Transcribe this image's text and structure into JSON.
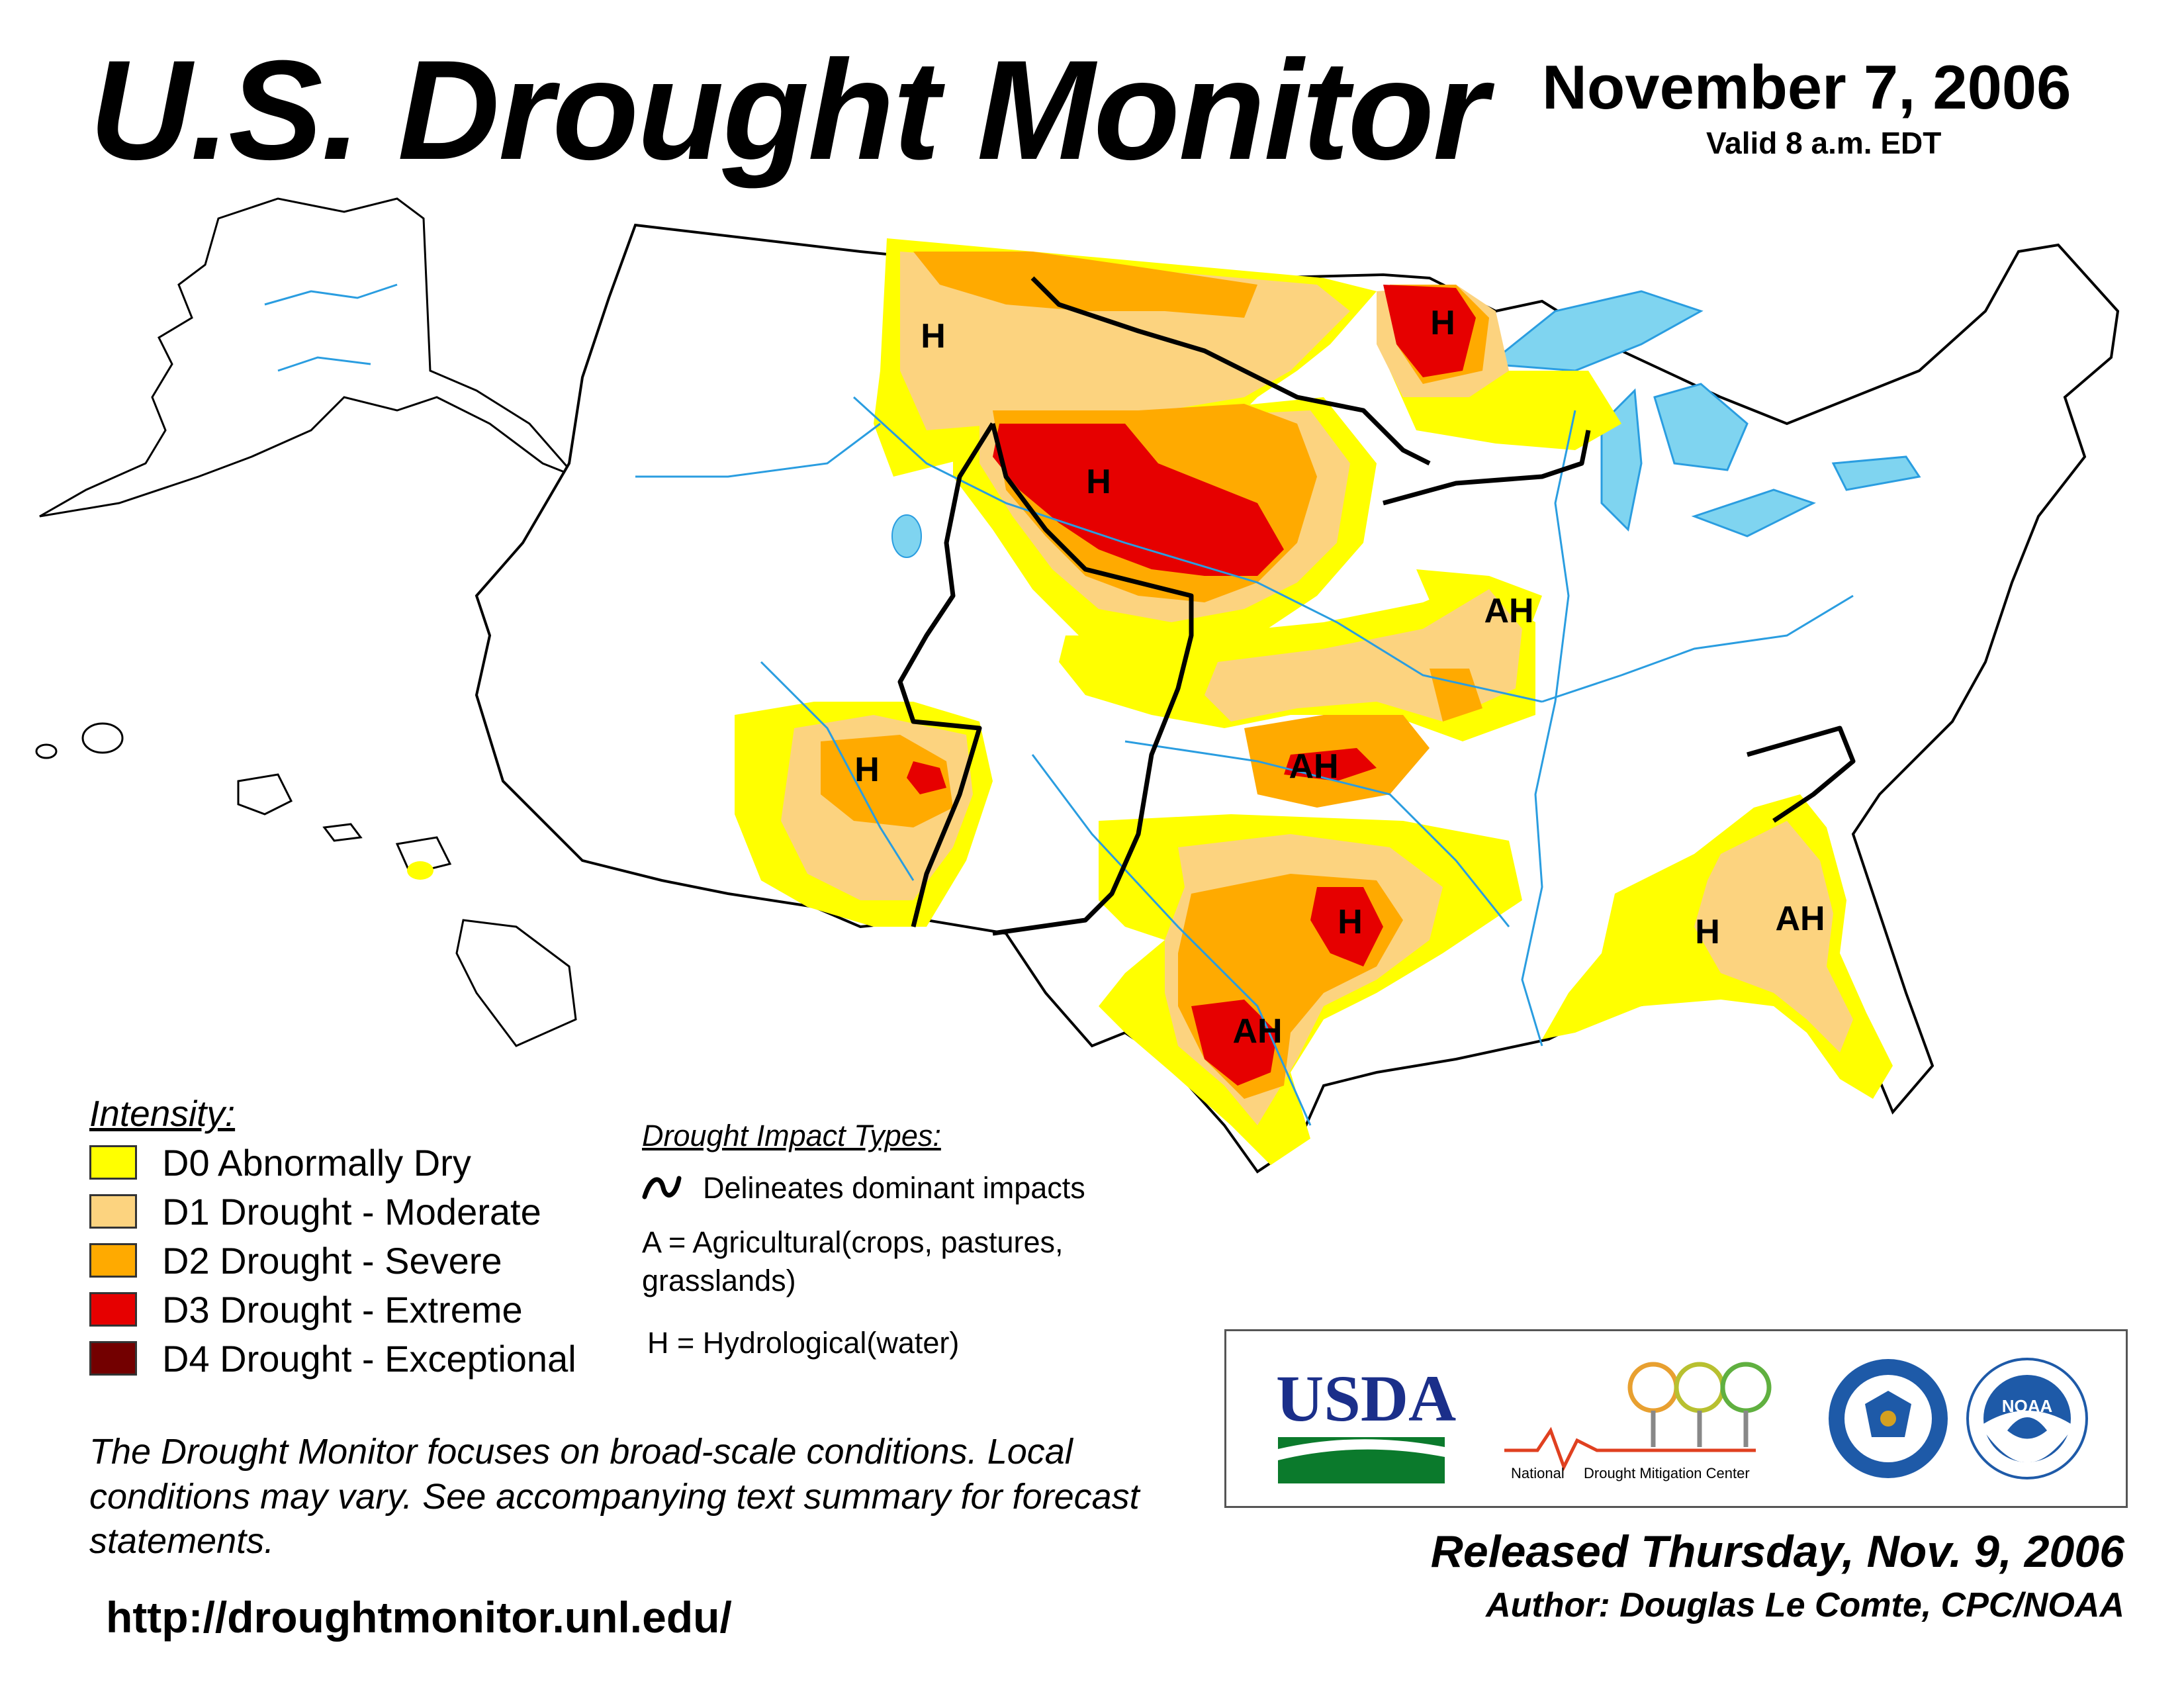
{
  "header": {
    "title": "U.S. Drought Monitor",
    "date": "November 7, 2006",
    "valid": "Valid 8 a.m. EDT"
  },
  "legend": {
    "title": "Intensity:",
    "items": [
      {
        "label": "D0 Abnormally Dry",
        "color": "#ffff00"
      },
      {
        "label": "D1 Drought - Moderate",
        "color": "#fcd37f"
      },
      {
        "label": "D2 Drought - Severe",
        "color": "#ffaa00"
      },
      {
        "label": "D3 Drought - Extreme",
        "color": "#e60000"
      },
      {
        "label": "D4 Drought - Exceptional",
        "color": "#730000"
      }
    ]
  },
  "impacts": {
    "title": "Drought Impact Types:",
    "delineates": "Delineates dominant impacts",
    "agricultural": "A = Agricultural(crops, pastures, grasslands)",
    "hydrological": "H = Hydrological(water)"
  },
  "map_labels": [
    {
      "text": "H"
    },
    {
      "text": "H"
    },
    {
      "text": "H"
    },
    {
      "text": "AH"
    },
    {
      "text": "H"
    },
    {
      "text": "AH"
    },
    {
      "text": "H"
    },
    {
      "text": "AH"
    },
    {
      "text": "H"
    },
    {
      "text": "AH"
    }
  ],
  "colors": {
    "water": "#7fd4f0",
    "river": "#2a9de0",
    "county": "#b0b0b0",
    "state": "#000000"
  },
  "note": "The Drought Monitor focuses on broad-scale conditions. Local conditions may vary. See accompanying text summary for forecast statements.",
  "url": "http://droughtmonitor.unl.edu/",
  "logos": {
    "usda": "USDA",
    "ndmc_left": "National",
    "ndmc_right": "Drought Mitigation Center",
    "noaa": "NOAA"
  },
  "footer": {
    "released": "Released Thursday, Nov. 9, 2006",
    "author": "Author: Douglas Le Comte, CPC/NOAA"
  }
}
